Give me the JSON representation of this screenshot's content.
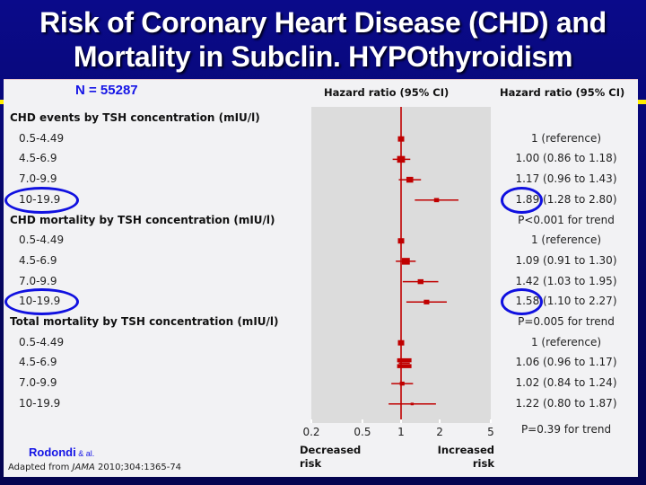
{
  "title": {
    "line1": "Risk of Coronary Heart Disease (CHD) and",
    "line2": "Mortality in Subclin. HYPOthyroidism"
  },
  "sample_size": "N = 55287",
  "credit": {
    "author": "Rodondi",
    "etal": " & al.",
    "source_prefix": "Adapted from ",
    "journal": "JAMA",
    "source_suffix": " 2010;304:1365-74"
  },
  "colors": {
    "marker": "#c00000",
    "highlight": "#1010e0",
    "title": "#ffffff",
    "background": "#06066e"
  },
  "chart_data": {
    "type": "forest",
    "x_scale": "log",
    "xlim": [
      0.2,
      5
    ],
    "x_ticks": [
      "0.2",
      "0.5",
      "1",
      "2",
      "5"
    ],
    "x_tick_values": [
      0.2,
      0.5,
      1,
      2,
      5
    ],
    "reference_line": 1,
    "column_headers": [
      "Hazard ratio (95% CI)",
      "Hazard ratio (95% CI)"
    ],
    "left_axis_label": "Decreased risk",
    "left_axis_label_lines": [
      "Decreased",
      "risk"
    ],
    "right_axis_label": "Increased risk",
    "right_axis_label_lines": [
      "Increased",
      "risk"
    ],
    "groups": [
      {
        "header": "CHD events by TSH concentration (mIU/l)",
        "rows": [
          {
            "label": "0.5-4.49",
            "hr": 1,
            "lo": null,
            "hi": null,
            "text": "1 (reference)",
            "weight": 1.0,
            "highlight": false
          },
          {
            "label": "4.5-6.9",
            "hr": 1.0,
            "lo": 0.86,
            "hi": 1.18,
            "text": "1.00 (0.86 to 1.18)",
            "weight": 1.3,
            "highlight": false
          },
          {
            "label": "7.0-9.9",
            "hr": 1.17,
            "lo": 0.96,
            "hi": 1.43,
            "text": "1.17 (0.96 to 1.43)",
            "weight": 1.1,
            "highlight": false
          },
          {
            "label": "10-19.9",
            "hr": 1.89,
            "lo": 1.28,
            "hi": 2.8,
            "text": "1.89 (1.28 to 2.80)",
            "weight": 0.75,
            "highlight": true
          }
        ],
        "trend": "P<0.001 for trend"
      },
      {
        "header": "CHD mortality by TSH concentration (mIU/l)",
        "rows": [
          {
            "label": "0.5-4.49",
            "hr": 1,
            "lo": null,
            "hi": null,
            "text": "1 (reference)",
            "weight": 1.0,
            "highlight": false
          },
          {
            "label": "4.5-6.9",
            "hr": 1.09,
            "lo": 0.91,
            "hi": 1.3,
            "text": "1.09 (0.91 to 1.30)",
            "weight": 1.3,
            "highlight": false
          },
          {
            "label": "7.0-9.9",
            "hr": 1.42,
            "lo": 1.03,
            "hi": 1.95,
            "text": "1.42 (1.03 to 1.95)",
            "weight": 0.9,
            "highlight": false
          },
          {
            "label": "10-19.9",
            "hr": 1.58,
            "lo": 1.1,
            "hi": 2.27,
            "text": "1.58 (1.10 to 2.27)",
            "weight": 0.85,
            "highlight": true
          }
        ],
        "trend": "P=0.005 for trend"
      },
      {
        "header": "Total mortality by TSH concentration (mIU/l)",
        "rows": [
          {
            "label": "0.5-4.49",
            "hr": 1,
            "lo": null,
            "hi": null,
            "text": "1 (reference)",
            "weight": 1.0,
            "highlight": false
          },
          {
            "label": "4.5-6.9",
            "hr": 1.06,
            "lo": 0.96,
            "hi": 1.17,
            "text": "1.06 (0.96 to 1.17)",
            "weight": 1.5,
            "highlight": false
          },
          {
            "label": "7.0-9.9",
            "hr": 1.02,
            "lo": 0.84,
            "hi": 1.24,
            "text": "1.02 (0.84 to 1.24)",
            "weight": 0.7,
            "highlight": false
          },
          {
            "label": "10-19.9",
            "hr": 1.22,
            "lo": 0.8,
            "hi": 1.87,
            "text": "1.22 (0.80 to 1.87)",
            "weight": 0.4,
            "highlight": false
          }
        ],
        "trend": "P=0.39 for trend"
      }
    ]
  }
}
